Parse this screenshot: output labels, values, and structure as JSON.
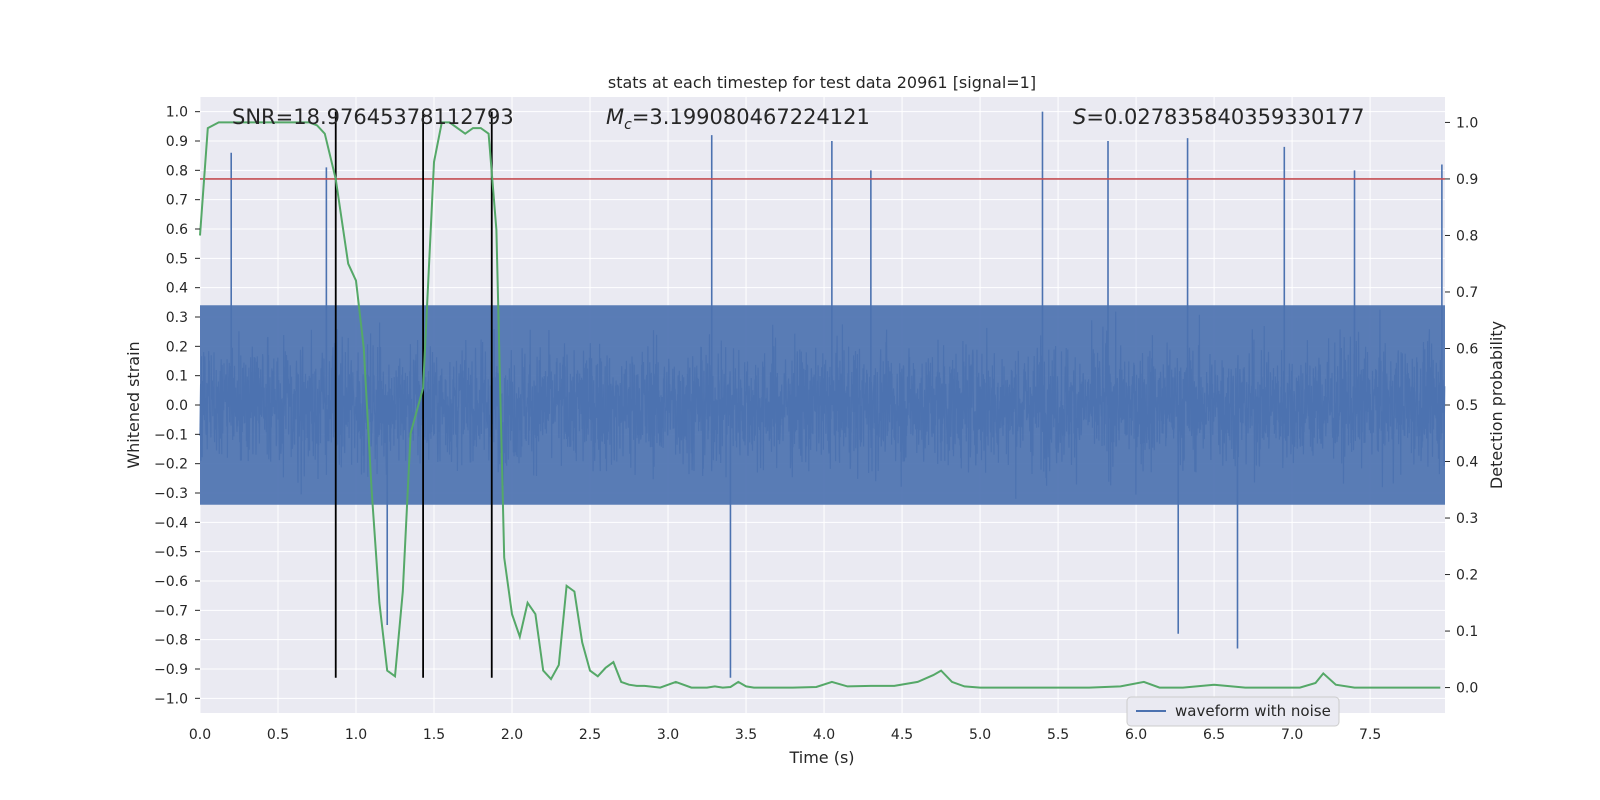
{
  "chart_data": {
    "type": "line",
    "title": "stats at each timestep for test data 20961 [signal=1]",
    "xlabel": "Time (s)",
    "ylabel_left": "Whitened strain",
    "ylabel_right": "Detection probability",
    "xlim": [
      0.0,
      7.98
    ],
    "ylim_left": [
      -1.05,
      1.05
    ],
    "ylim_right": [
      -0.045,
      1.045
    ],
    "x_ticks": [
      "0.0",
      "0.5",
      "1.0",
      "1.5",
      "2.0",
      "2.5",
      "3.0",
      "3.5",
      "4.0",
      "4.5",
      "5.0",
      "5.5",
      "6.0",
      "6.5",
      "7.0",
      "7.5"
    ],
    "left_ticks": [
      "1.0",
      "0.9",
      "0.8",
      "0.7",
      "0.6",
      "0.5",
      "0.4",
      "0.3",
      "0.2",
      "0.1",
      "0.0",
      "−0.1",
      "−0.2",
      "−0.3",
      "−0.4",
      "−0.5",
      "−0.6",
      "−0.7",
      "−0.8",
      "−0.9",
      "−1.0"
    ],
    "right_ticks": [
      "1.0",
      "0.9",
      "0.8",
      "0.7",
      "0.6",
      "0.5",
      "0.4",
      "0.3",
      "0.2",
      "0.1",
      "0.0"
    ],
    "annotations": {
      "snr": "SNR=18.97645378112793",
      "mc_symbol": "M",
      "mc_sub": "c",
      "mc_value": "=3.199080467224121",
      "s_symbol": "S",
      "s_value": "=0.027835840359330177"
    },
    "threshold": {
      "axis": "right",
      "value": 0.9,
      "color": "#c44e52"
    },
    "vertical_markers": [
      0.87,
      1.43,
      1.87
    ],
    "legend": {
      "label": "waveform with noise",
      "position": "lower-right"
    },
    "series": [
      {
        "name": "waveform with noise",
        "axis": "left",
        "color": "#4c72b0",
        "envelope_note": "dense noisy strain, approx ±0.4 with spikes up to ±1.0",
        "spikes": [
          {
            "x": 0.2,
            "y": 0.86
          },
          {
            "x": 0.81,
            "y": 0.81
          },
          {
            "x": 3.28,
            "y": 0.92
          },
          {
            "x": 4.05,
            "y": 0.9
          },
          {
            "x": 4.3,
            "y": 0.8
          },
          {
            "x": 5.4,
            "y": 1.0
          },
          {
            "x": 5.82,
            "y": 0.9
          },
          {
            "x": 6.33,
            "y": 0.91
          },
          {
            "x": 6.95,
            "y": 0.88
          },
          {
            "x": 7.4,
            "y": 0.8
          },
          {
            "x": 7.96,
            "y": 0.82
          },
          {
            "x": 3.4,
            "y": -0.93
          },
          {
            "x": 6.65,
            "y": -0.83
          },
          {
            "x": 1.2,
            "y": -0.75
          },
          {
            "x": 6.27,
            "y": -0.78
          }
        ]
      },
      {
        "name": "detection probability",
        "axis": "right",
        "color": "#55a868",
        "x": [
          0.0,
          0.05,
          0.12,
          0.2,
          0.3,
          0.4,
          0.5,
          0.6,
          0.7,
          0.75,
          0.8,
          0.87,
          0.95,
          1.0,
          1.05,
          1.1,
          1.15,
          1.2,
          1.25,
          1.3,
          1.35,
          1.43,
          1.5,
          1.55,
          1.6,
          1.65,
          1.7,
          1.75,
          1.8,
          1.85,
          1.9,
          1.95,
          2.0,
          2.05,
          2.1,
          2.15,
          2.2,
          2.25,
          2.3,
          2.35,
          2.4,
          2.45,
          2.5,
          2.55,
          2.6,
          2.65,
          2.7,
          2.75,
          2.8,
          2.85,
          2.95,
          3.05,
          3.15,
          3.25,
          3.3,
          3.35,
          3.4,
          3.45,
          3.5,
          3.55,
          3.65,
          3.8,
          3.95,
          4.05,
          4.15,
          4.3,
          4.45,
          4.6,
          4.7,
          4.75,
          4.82,
          4.9,
          5.0,
          5.1,
          5.3,
          5.5,
          5.7,
          5.9,
          6.05,
          6.15,
          6.3,
          6.5,
          6.7,
          6.9,
          7.05,
          7.15,
          7.2,
          7.28,
          7.4,
          7.6,
          7.8,
          7.95
        ],
        "y": [
          0.8,
          0.99,
          1.0,
          1.0,
          1.0,
          1.0,
          1.0,
          1.0,
          1.0,
          0.995,
          0.98,
          0.9,
          0.75,
          0.72,
          0.6,
          0.35,
          0.15,
          0.03,
          0.02,
          0.17,
          0.45,
          0.53,
          0.93,
          1.0,
          1.0,
          0.99,
          0.98,
          0.99,
          0.99,
          0.98,
          0.81,
          0.23,
          0.13,
          0.09,
          0.15,
          0.13,
          0.03,
          0.015,
          0.04,
          0.18,
          0.17,
          0.08,
          0.03,
          0.02,
          0.035,
          0.045,
          0.01,
          0.005,
          0.003,
          0.003,
          0.0,
          0.01,
          0.0,
          0.0,
          0.002,
          0.0,
          0.001,
          0.01,
          0.002,
          0.0,
          0.0,
          0.0,
          0.001,
          0.01,
          0.002,
          0.003,
          0.003,
          0.01,
          0.022,
          0.03,
          0.01,
          0.002,
          0.0,
          0.0,
          0.0,
          0.0,
          0.0,
          0.002,
          0.01,
          0.0,
          0.0,
          0.005,
          0.0,
          0.0,
          0.0,
          0.008,
          0.025,
          0.005,
          0.0,
          0.0,
          0.0,
          0.0
        ]
      }
    ]
  }
}
